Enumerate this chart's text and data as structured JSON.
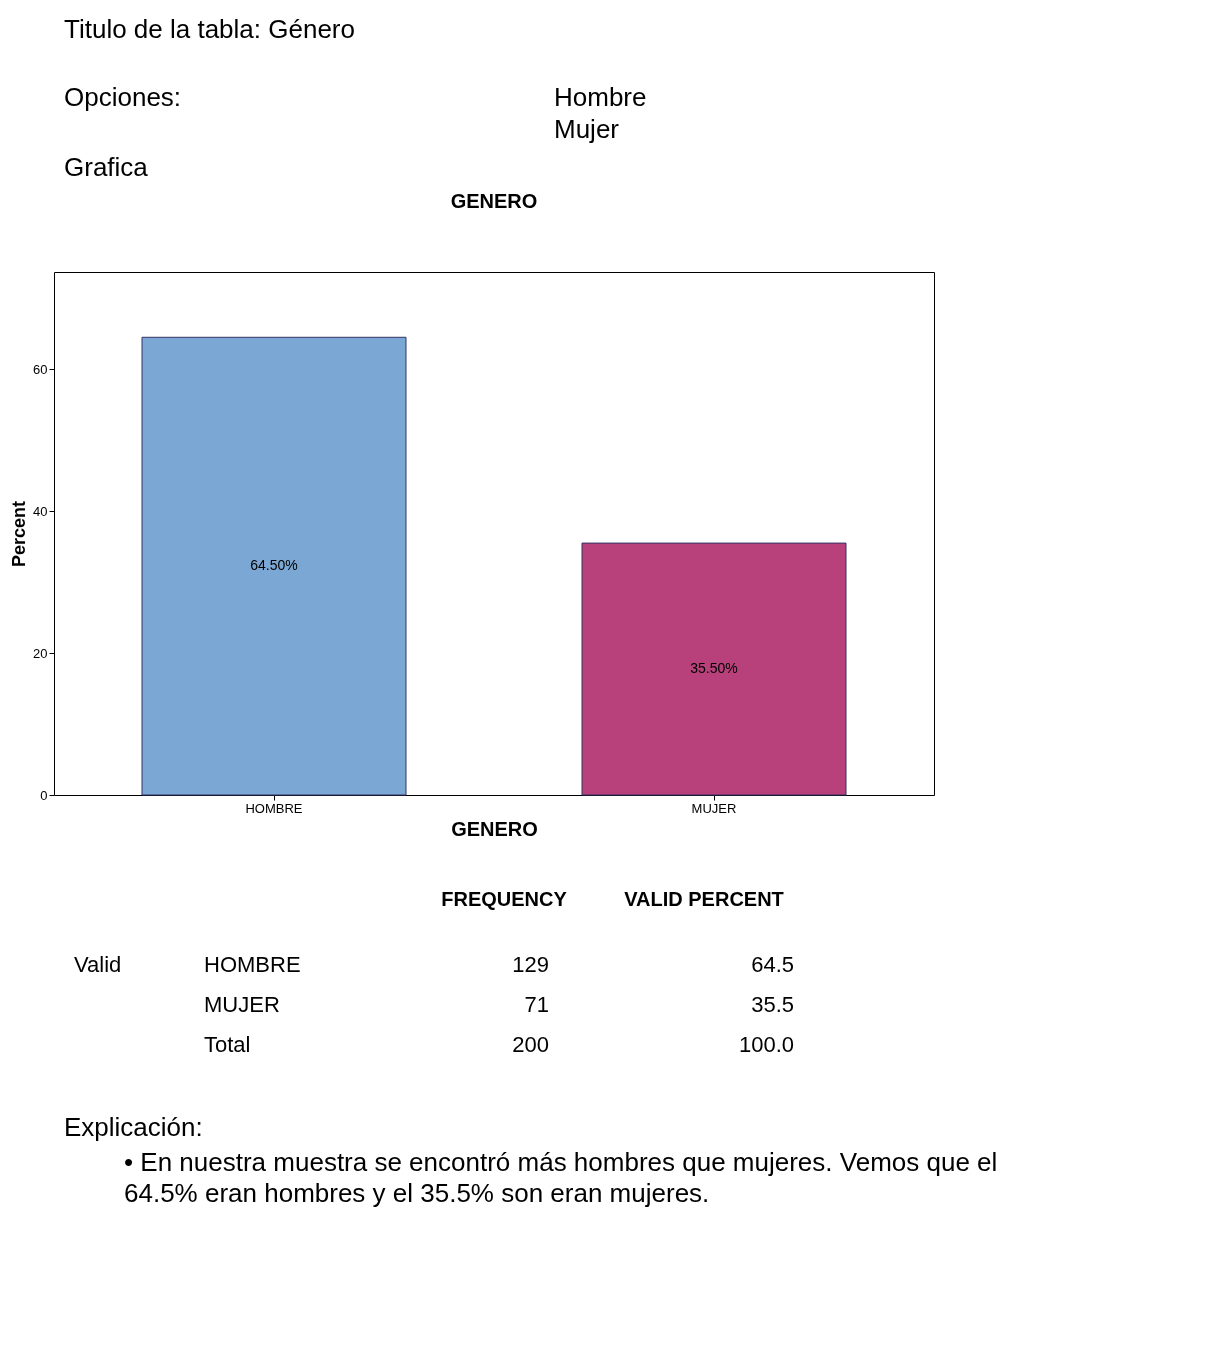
{
  "chart_data": {
    "type": "bar",
    "title": "GENERO",
    "xlabel": "GENERO",
    "ylabel": "Percent",
    "categories": [
      "HOMBRE",
      "MUJER"
    ],
    "values": [
      64.5,
      35.5
    ],
    "colors": [
      "#7ba7d5",
      "#b8407b"
    ],
    "value_labels": [
      "64.50%",
      "35.50%"
    ],
    "ylim": [
      0,
      73.7
    ],
    "yticks": [
      0,
      20,
      40,
      60
    ],
    "grid": false,
    "annotations": [
      "Titulo de la tabla:  Género",
      "Opciones:",
      "Hombre",
      "Mujer",
      "Grafica",
      "FREQUENCY",
      "VALID PERCENT",
      "Valid",
      "HOMBRE",
      "129",
      "64.5",
      "MUJER",
      "71",
      "35.5",
      "Total",
      "200",
      "100.0",
      "Explicación:",
      "• En nuestra muestra se encontró más hombres  que mujeres. Vemos que  el\n64.5% eran hombres y el 35.5% son eran mujeres."
    ]
  }
}
